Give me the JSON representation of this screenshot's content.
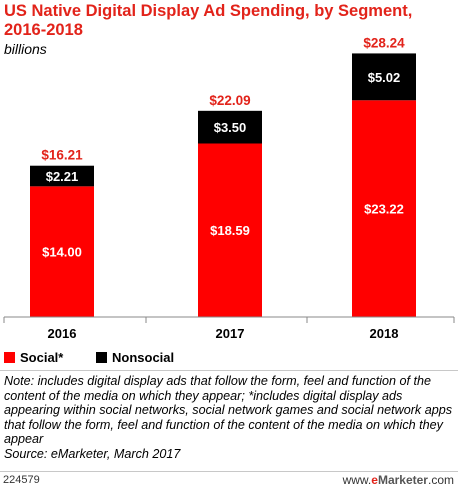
{
  "chart_data": {
    "type": "bar",
    "stacked": true,
    "title": "US Native Digital Display Ad Spending, by Segment, 2016-2018",
    "subtitle": "billions",
    "categories": [
      "2016",
      "2017",
      "2018"
    ],
    "series": [
      {
        "name": "Social*",
        "color": "#ff0000",
        "values": [
          14.0,
          18.59,
          23.22
        ],
        "labels": [
          "$14.00",
          "$18.59",
          "$23.22"
        ]
      },
      {
        "name": "Nonsocial",
        "color": "#000000",
        "values": [
          2.21,
          3.5,
          5.02
        ],
        "labels": [
          "$2.21",
          "$3.50",
          "$5.02"
        ]
      }
    ],
    "totals": [
      16.21,
      22.09,
      28.24
    ],
    "total_labels": [
      "$16.21",
      "$22.09",
      "$28.24"
    ],
    "total_label_color": "#e2231a",
    "ylim": [
      0,
      30
    ],
    "grid": false,
    "legend_position": "bottom-left"
  },
  "note": "Note: includes digital display ads that follow the form, feel and function of the content of the media on which they appear; *includes digital display ads appearing within social networks, social network games and social network apps that follow the form, feel and function of the content of the media on which they appear",
  "source": "Source: eMarketer, March 2017",
  "footer": {
    "chart_id": "224579",
    "brand_prefix": "www.",
    "brand_e": "e",
    "brand_rest": "Marketer",
    "brand_suffix": ".com"
  }
}
